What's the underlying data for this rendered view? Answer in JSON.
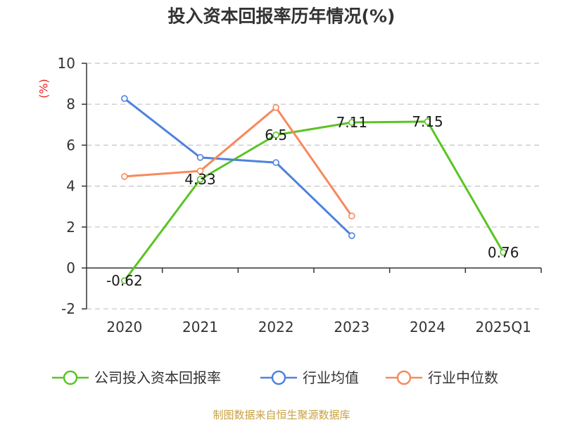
{
  "source": "制图数据来自恒生聚源数据库",
  "colors": {
    "axis_name": "#e8251f",
    "source": "#c8a13f",
    "axis": "#333333",
    "grid": "#c4c4c4"
  },
  "chart_data": {
    "type": "line",
    "title": "投入资本回报率历年情况(%)",
    "ylabel": "(%)",
    "categories": [
      "2020",
      "2021",
      "2022",
      "2023",
      "2024",
      "2025Q1"
    ],
    "ylim": [
      -2,
      10
    ],
    "yticks": [
      -2,
      0,
      2,
      4,
      6,
      8,
      10
    ],
    "grid": true,
    "legend_position": "bottom",
    "series": [
      {
        "name": "公司投入资本回报率",
        "color": "#5ac423",
        "values": [
          -0.62,
          4.33,
          6.5,
          7.11,
          7.15,
          0.76
        ],
        "data_labels": true
      },
      {
        "name": "行业均值",
        "color": "#4e82dc",
        "values": [
          8.28,
          5.4,
          5.15,
          1.58,
          null,
          null
        ],
        "data_labels": false
      },
      {
        "name": "行业中位数",
        "color": "#f7895c",
        "values": [
          4.47,
          4.74,
          7.84,
          2.54,
          null,
          null
        ],
        "data_labels": false
      }
    ]
  }
}
